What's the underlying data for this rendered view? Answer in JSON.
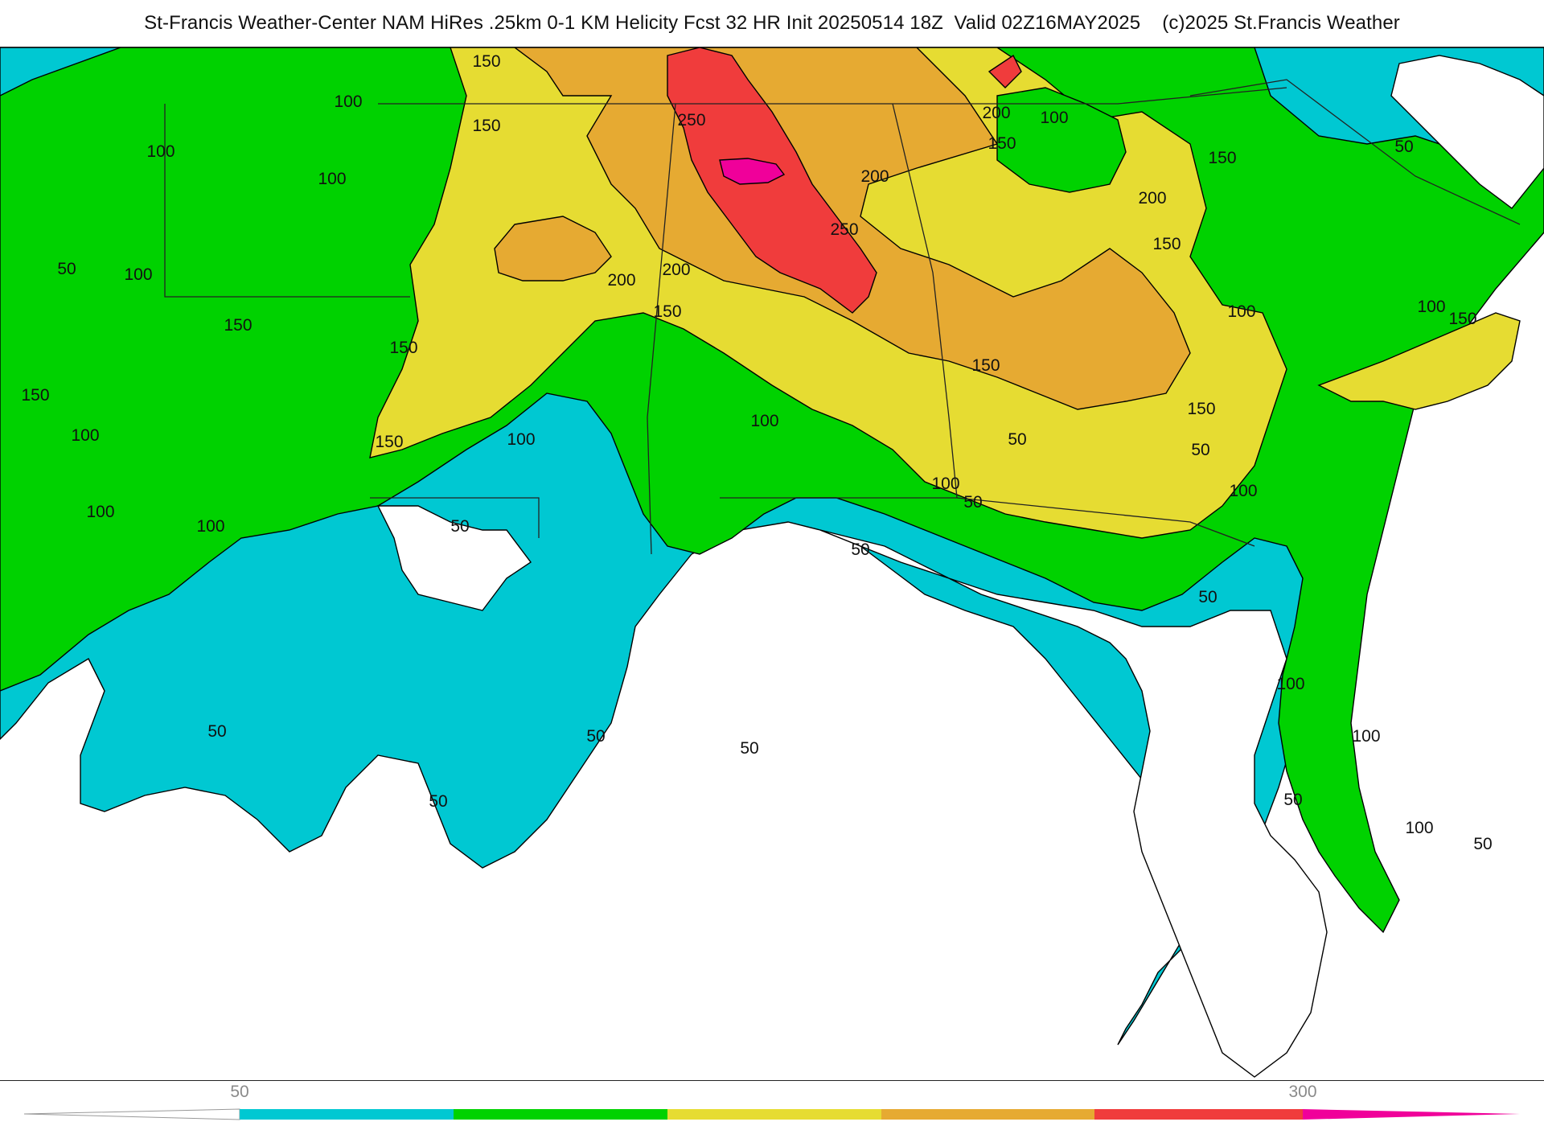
{
  "header": {
    "title": "St-Francis Weather-Center NAM HiRes .25km 0-1 KM Helicity Fcst 32 HR Init 20250514 18Z  Valid 02Z16MAY2025    (c)2025 St.Francis Weather"
  },
  "colors": {
    "band_50_100": "#00c8d2",
    "band_100_150": "#00d200",
    "band_150_200": "#e6dc32",
    "band_200_250": "#e6aa32",
    "band_250_300": "#f03c3c",
    "band_300_plus": "#f0009a",
    "below_50": "#ffffff",
    "contour": "#000000",
    "state_line": "#222222",
    "county_line": "#808080"
  },
  "contour_labels": [
    {
      "text": "100"
    },
    {
      "text": "150"
    },
    {
      "text": "100"
    },
    {
      "text": "100"
    },
    {
      "text": "50"
    },
    {
      "text": "100"
    },
    {
      "text": "150"
    },
    {
      "text": "150"
    },
    {
      "text": "150"
    },
    {
      "text": "100"
    },
    {
      "text": "150"
    },
    {
      "text": "150"
    },
    {
      "text": "100"
    },
    {
      "text": "100"
    },
    {
      "text": "100"
    },
    {
      "text": "50"
    },
    {
      "text": "250"
    },
    {
      "text": "200"
    },
    {
      "text": "250"
    },
    {
      "text": "200"
    },
    {
      "text": "200"
    },
    {
      "text": "150"
    },
    {
      "text": "100"
    },
    {
      "text": "150"
    },
    {
      "text": "100"
    },
    {
      "text": "200"
    },
    {
      "text": "150"
    },
    {
      "text": "200"
    },
    {
      "text": "150"
    },
    {
      "text": "100"
    },
    {
      "text": "150"
    },
    {
      "text": "50"
    },
    {
      "text": "50"
    },
    {
      "text": "100"
    },
    {
      "text": "150"
    },
    {
      "text": "100"
    },
    {
      "text": "150"
    },
    {
      "text": "100"
    },
    {
      "text": "50"
    },
    {
      "text": "50"
    },
    {
      "text": "50"
    },
    {
      "text": "50"
    },
    {
      "text": "50"
    },
    {
      "text": "50"
    },
    {
      "text": "50"
    },
    {
      "text": "100"
    },
    {
      "text": "100"
    },
    {
      "text": "100"
    },
    {
      "text": "50"
    },
    {
      "text": "50"
    },
    {
      "text": "50"
    }
  ],
  "legend": {
    "tick_min": "50",
    "tick_max": "300"
  }
}
